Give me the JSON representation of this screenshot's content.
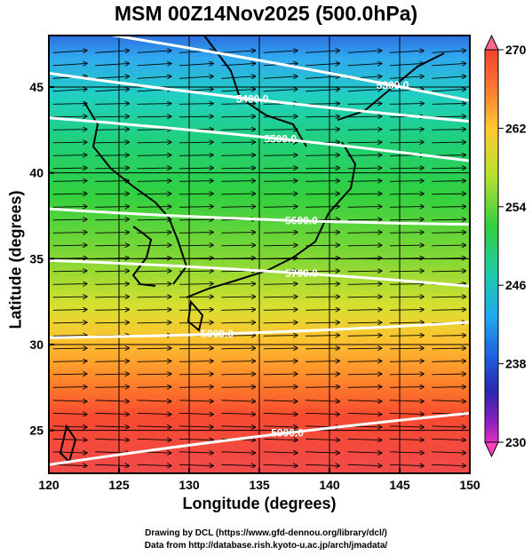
{
  "title": "MSM 00Z14Nov2025 (500.0hPa)",
  "x_axis": {
    "label": "Longitude (degrees)",
    "range": [
      120,
      150
    ],
    "ticks": [
      "120",
      "125",
      "130",
      "135",
      "140",
      "145",
      "150"
    ]
  },
  "y_axis": {
    "label": "Latitude  (degrees)",
    "range": [
      22.5,
      48
    ],
    "ticks": [
      "25",
      "30",
      "35",
      "40",
      "45"
    ]
  },
  "colorbar": {
    "min": 230,
    "max": 270,
    "ticks": [
      "270",
      "262",
      "254",
      "246",
      "238",
      "230"
    ],
    "colors": [
      "#ff6a8c",
      "#f03c2a",
      "#ff8a2a",
      "#ffd030",
      "#c8e830",
      "#30d040",
      "#20c8a0",
      "#20b0f0",
      "#2060e0",
      "#3030b0",
      "#9a20c0",
      "#ff40c0"
    ]
  },
  "contours": [
    {
      "label": "5300.0",
      "lat_west": 48.6,
      "lat_east": 44.2,
      "label_lon": 144.5
    },
    {
      "label": "5400.0",
      "lat_west": 45.8,
      "lat_east": 43.0,
      "label_lon": 134.5
    },
    {
      "label": "5500.0",
      "lat_west": 43.2,
      "lat_east": 40.7,
      "label_lon": 136.5
    },
    {
      "label": "5600.0",
      "lat_west": 37.9,
      "lat_east": 37.0,
      "label_lon": 138.0
    },
    {
      "label": "5700.0",
      "lat_west": 34.9,
      "lat_east": 33.4,
      "label_lon": 138.0
    },
    {
      "label": "5800.0",
      "lat_west": 30.4,
      "lat_east": 31.3,
      "label_lon": 132.0
    },
    {
      "label": "5900.0",
      "lat_west": 23.0,
      "lat_east": 26.0,
      "label_lon": 137.0
    }
  ],
  "credits": [
    "Drawing by DCL (https://www.gfd-dennou.org/library/dcl/)",
    "Data from http://database.rish.kyoto-u.ac.jp/arch/jmadata/"
  ]
}
